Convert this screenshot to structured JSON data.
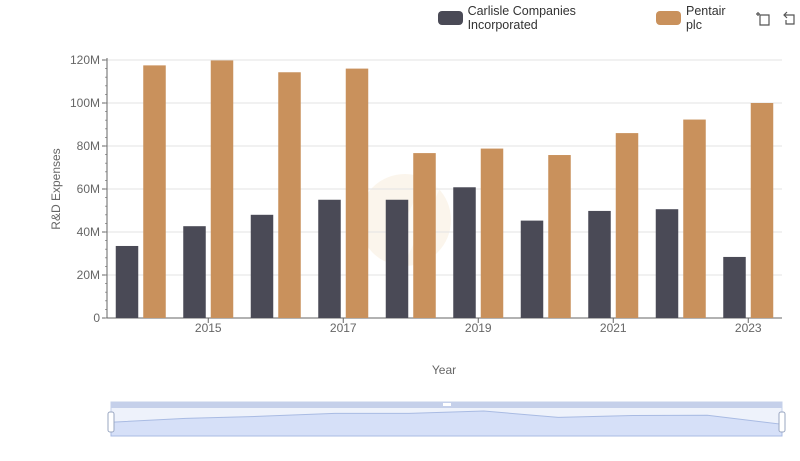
{
  "legend": {
    "items": [
      {
        "label": "Carlisle Companies Incorporated",
        "color": "#4a4a56"
      },
      {
        "label": "Pentair plc",
        "color": "#c9915c"
      }
    ]
  },
  "toolbar": {
    "icons": [
      "zoom-rect-icon",
      "zoom-reset-icon"
    ]
  },
  "chart_data": {
    "type": "bar",
    "xlabel": "Year",
    "ylabel": "R&D Expenses",
    "categories": [
      "2014",
      "2015",
      "2016",
      "2017",
      "2018",
      "2019",
      "2020",
      "2021",
      "2022",
      "2023"
    ],
    "x_tick_labels": [
      "2015",
      "2017",
      "2019",
      "2021",
      "2023"
    ],
    "y_tick_labels": [
      "0",
      "20M",
      "40M",
      "60M",
      "80M",
      "100M",
      "120M"
    ],
    "ylim": [
      0,
      120000000
    ],
    "grid": true,
    "legend_position": "top-right",
    "series": [
      {
        "name": "Carlisle Companies Incorporated",
        "color": "#4a4a56",
        "values": [
          33500000,
          42700000,
          48000000,
          55000000,
          55000000,
          60800000,
          45300000,
          49800000,
          50600000,
          28400000
        ]
      },
      {
        "name": "Pentair plc",
        "color": "#c9915c",
        "values": [
          117500000,
          119800000,
          114300000,
          116000000,
          76700000,
          78800000,
          75800000,
          86000000,
          92300000,
          100000000
        ]
      }
    ]
  }
}
